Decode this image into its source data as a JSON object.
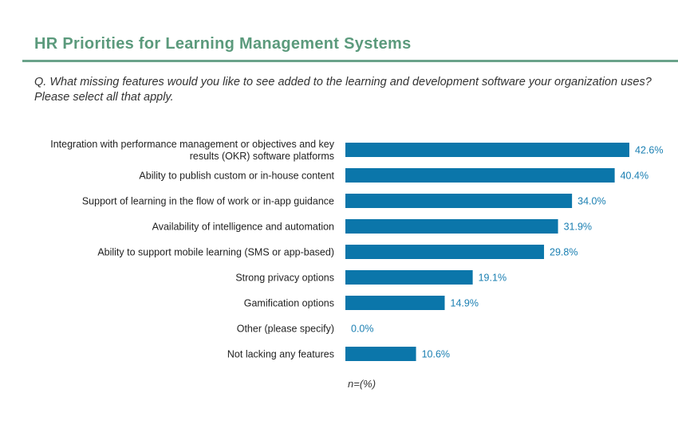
{
  "header": {
    "title": "HR Priorities for Learning Management Systems",
    "question": "Q. What missing features would you like to see added to the learning and development software your organization uses? Please select all that apply."
  },
  "footnote": "n=(%)",
  "colors": {
    "bar": "#0b76aa",
    "title": "#5b9a7c",
    "value_label": "#1a7fb2"
  },
  "chart_data": {
    "type": "bar",
    "orientation": "horizontal",
    "categories": [
      [
        "Integration with performance management or objectives and key",
        "results (OKR) software platforms"
      ],
      [
        "Ability to publish custom or in-house content"
      ],
      [
        "Support of learning in the flow of work or in-app guidance"
      ],
      [
        "Availability of intelligence and automation"
      ],
      [
        "Ability to support mobile learning (SMS or app-based)"
      ],
      [
        "Strong privacy options"
      ],
      [
        "Gamification options"
      ],
      [
        "Other (please specify)"
      ],
      [
        "Not lacking any features"
      ]
    ],
    "values": [
      42.6,
      40.4,
      34.0,
      31.9,
      29.8,
      19.1,
      14.9,
      0.0,
      10.6
    ],
    "value_labels": [
      "42.6%",
      "40.4%",
      "34.0%",
      "31.9%",
      "29.8%",
      "19.1%",
      "14.9%",
      "0.0%",
      "10.6%"
    ],
    "xlim": [
      0,
      42.6
    ],
    "grid": false,
    "legend": false
  }
}
